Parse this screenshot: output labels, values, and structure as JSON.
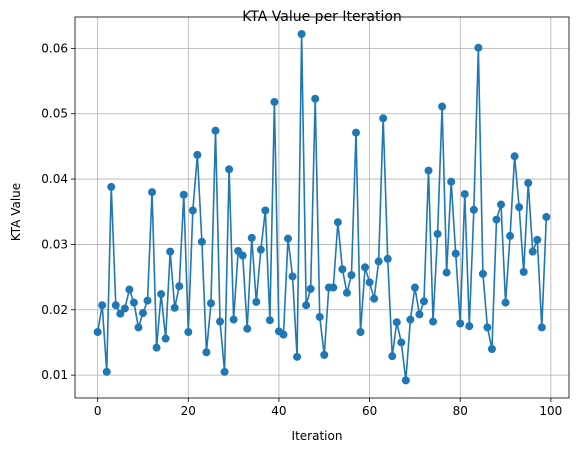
{
  "chart_data": {
    "type": "line",
    "title": "KTA Value per Iteration",
    "xlabel": "Iteration",
    "ylabel": "KTA Value",
    "xlim": [
      -5.0,
      104.0
    ],
    "ylim": [
      0.0065,
      0.0648
    ],
    "xticks": [
      0,
      20,
      40,
      60,
      80,
      100
    ],
    "xtick_labels": [
      "0",
      "20",
      "40",
      "60",
      "80",
      "100"
    ],
    "yticks": [
      0.01,
      0.02,
      0.03,
      0.04,
      0.05,
      0.06
    ],
    "ytick_labels": [
      "0.01",
      "0.02",
      "0.03",
      "0.04",
      "0.05",
      "0.06"
    ],
    "grid": true,
    "marker": "circle",
    "color": "#1f77b4",
    "x": [
      0,
      1,
      2,
      3,
      4,
      5,
      6,
      7,
      8,
      9,
      10,
      11,
      12,
      13,
      14,
      15,
      16,
      17,
      18,
      19,
      20,
      21,
      22,
      23,
      24,
      25,
      26,
      27,
      28,
      29,
      30,
      31,
      32,
      33,
      34,
      35,
      36,
      37,
      38,
      39,
      40,
      41,
      42,
      43,
      44,
      45,
      46,
      47,
      48,
      49,
      50,
      51,
      52,
      53,
      54,
      55,
      56,
      57,
      58,
      59,
      60,
      61,
      62,
      63,
      64,
      65,
      66,
      67,
      68,
      69,
      70,
      71,
      72,
      73,
      74,
      75,
      76,
      77,
      78,
      79,
      80,
      81,
      82,
      83,
      84,
      85,
      86,
      87,
      88,
      89,
      90,
      91,
      92,
      93,
      94,
      95,
      96,
      97,
      98,
      99
    ],
    "series": [
      {
        "values": [
          0.0166,
          0.0207,
          0.0105,
          0.0388,
          0.0207,
          0.0194,
          0.0202,
          0.0231,
          0.0211,
          0.0173,
          0.0195,
          0.0214,
          0.038,
          0.0142,
          0.0224,
          0.0156,
          0.0289,
          0.0203,
          0.0236,
          0.0376,
          0.0166,
          0.0352,
          0.0437,
          0.0304,
          0.0135,
          0.021,
          0.0474,
          0.0182,
          0.0105,
          0.0415,
          0.0185,
          0.029,
          0.0283,
          0.0171,
          0.031,
          0.0212,
          0.0292,
          0.0352,
          0.0184,
          0.0518,
          0.0167,
          0.0162,
          0.0309,
          0.0251,
          0.0128,
          0.0622,
          0.0207,
          0.0232,
          0.0523,
          0.0189,
          0.0131,
          0.0234,
          0.0234,
          0.0334,
          0.0262,
          0.0226,
          0.0253,
          0.0471,
          0.0166,
          0.0265,
          0.0242,
          0.0217,
          0.0274,
          0.0493,
          0.0278,
          0.0129,
          0.0181,
          0.015,
          0.0092,
          0.0185,
          0.0234,
          0.0193,
          0.0213,
          0.0413,
          0.0182,
          0.0316,
          0.0511,
          0.0257,
          0.0396,
          0.0286,
          0.0179,
          0.0377,
          0.0175,
          0.0353,
          0.0601,
          0.0255,
          0.0173,
          0.014,
          0.0338,
          0.0361,
          0.0211,
          0.0313,
          0.0435,
          0.0357,
          0.0258,
          0.0394,
          0.0289,
          0.0307,
          0.0173,
          0.0342
        ]
      }
    ]
  }
}
